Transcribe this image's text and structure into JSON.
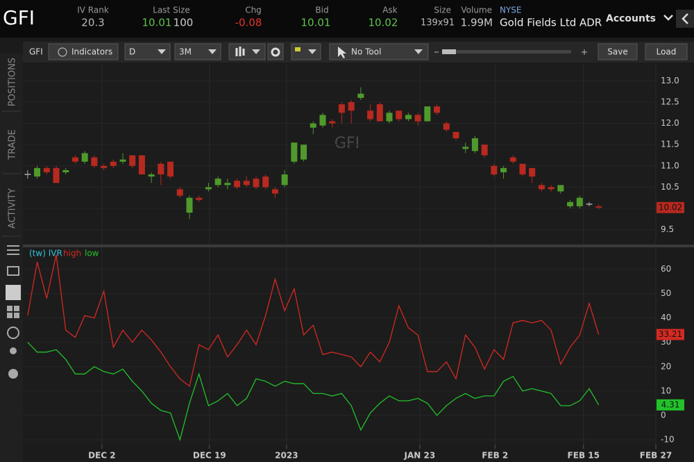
{
  "header": {
    "symbol": "GFI",
    "iv_rank": {
      "label": "IV Rank",
      "value": "20.3"
    },
    "last_size": {
      "label": "Last Size",
      "price": "10.01",
      "size": "100"
    },
    "chg": {
      "label": "Chg",
      "value": "-0.08"
    },
    "bid": {
      "label": "Bid",
      "value": "10.01"
    },
    "ask": {
      "label": "Ask",
      "value": "10.02"
    },
    "size": {
      "label": "Size",
      "value": "139x91"
    },
    "volume": {
      "label": "Volume",
      "value": "1.99M"
    },
    "exchange": "NYSE",
    "name": "Gold Fields Ltd ADR",
    "accounts": "Accounts"
  },
  "toolbar": {
    "indicators": "Indicators",
    "aggregation": "D",
    "range": "3M",
    "tool": "No Tool",
    "save": "Save",
    "load": "Load"
  },
  "sidebar": [
    "POSITIONS",
    "TRADE",
    "ACTIVITY"
  ],
  "chart_data": [
    {
      "type": "candlestick",
      "open": [
        10.8,
        10.75,
        10.95,
        10.95,
        10.85,
        11.2,
        11.1,
        11.2,
        11.0,
        11.1,
        11.1,
        11.25,
        11.25,
        10.75,
        11.05,
        11.1,
        10.45,
        9.9,
        10.25,
        10.45,
        10.55,
        10.55,
        10.65,
        10.65,
        10.7,
        10.75,
        10.45,
        10.55,
        11.1,
        11.15,
        11.9,
        11.95,
        12.05,
        12.45,
        12.5,
        12.6,
        12.3,
        12.45,
        12.05,
        12.3,
        12.1,
        12.2,
        12.05,
        12.4,
        12.0,
        11.8,
        11.4,
        11.35,
        11.5,
        11.0,
        10.85,
        11.2,
        11.05,
        10.95,
        10.55,
        10.5,
        10.4,
        10.05,
        10.05,
        10.1,
        10.05
      ],
      "high": [
        10.9,
        11.0,
        11.0,
        11.0,
        10.95,
        11.25,
        11.35,
        11.25,
        11.05,
        11.15,
        11.3,
        11.25,
        11.25,
        10.85,
        11.1,
        11.1,
        10.5,
        10.3,
        10.3,
        10.6,
        10.75,
        10.7,
        10.7,
        10.75,
        10.75,
        10.8,
        10.5,
        10.9,
        11.55,
        11.5,
        12.05,
        12.25,
        12.1,
        12.5,
        12.55,
        12.85,
        12.45,
        12.5,
        12.3,
        12.3,
        12.25,
        12.25,
        12.4,
        12.45,
        12.05,
        11.8,
        11.55,
        11.7,
        11.5,
        11.05,
        11.0,
        11.25,
        11.05,
        10.95,
        10.6,
        10.55,
        10.55,
        10.2,
        10.3,
        10.15,
        10.1
      ],
      "low": [
        10.7,
        10.7,
        10.8,
        10.6,
        10.8,
        11.05,
        11.05,
        10.95,
        10.9,
        10.95,
        11.05,
        10.95,
        10.8,
        10.6,
        10.55,
        10.7,
        10.25,
        9.75,
        10.15,
        10.4,
        10.5,
        10.45,
        10.45,
        10.5,
        10.45,
        10.45,
        10.25,
        10.5,
        11.05,
        11.1,
        11.75,
        11.9,
        11.9,
        12.0,
        12.0,
        12.55,
        12.05,
        12.05,
        12.0,
        12.05,
        12.05,
        11.95,
        12.05,
        12.2,
        11.8,
        11.6,
        11.3,
        11.3,
        11.2,
        10.75,
        10.7,
        11.05,
        10.75,
        10.6,
        10.4,
        10.4,
        10.35,
        10.0,
        10.0,
        10.05,
        9.98
      ],
      "close": [
        10.8,
        10.95,
        10.85,
        10.6,
        10.9,
        11.1,
        11.3,
        11.0,
        10.95,
        11.0,
        11.15,
        11.0,
        10.8,
        10.8,
        10.8,
        10.75,
        10.3,
        10.25,
        10.2,
        10.5,
        10.7,
        10.6,
        10.5,
        10.55,
        10.5,
        10.5,
        10.35,
        10.8,
        11.55,
        11.5,
        12.0,
        12.2,
        12.0,
        12.25,
        12.3,
        12.7,
        12.1,
        12.05,
        12.25,
        12.1,
        12.2,
        12.05,
        12.4,
        12.25,
        11.85,
        11.65,
        11.45,
        11.65,
        11.25,
        10.8,
        10.95,
        11.1,
        10.8,
        10.75,
        10.45,
        10.45,
        10.55,
        10.15,
        10.25,
        10.1,
        10.02
      ],
      "colors": {
        "up": "#4f9a2c",
        "down": "#b8291f",
        "flat": "#aaaaaa"
      },
      "xlim": [
        -0.5,
        66
      ],
      "ylim": [
        9.15,
        13.4
      ],
      "yticks": [
        9.5,
        {
          "value": 10,
          "label": "10.0"
        },
        10.5,
        {
          "value": 11,
          "label": "11.0"
        },
        11.5,
        {
          "value": 12,
          "label": "12.0"
        },
        12.5,
        {
          "value": 13,
          "label": "13.0"
        }
      ],
      "grid": true
    },
    {
      "type": "line",
      "title": "(tw) IVR",
      "title_color": "#33c3dc",
      "series": [
        {
          "name": "high",
          "color": "#d42a22",
          "values": [
            41,
            63,
            48,
            66,
            35,
            32,
            41,
            40,
            51,
            28,
            35,
            30,
            35,
            31,
            26,
            20,
            15,
            12,
            29,
            27,
            33,
            24,
            29,
            35,
            29,
            41,
            56,
            43,
            52,
            33,
            37,
            25,
            26,
            25,
            24,
            20,
            26,
            22,
            30,
            45,
            36,
            33,
            18,
            18,
            22,
            15,
            33,
            28,
            19,
            27,
            23,
            38,
            39,
            38,
            39,
            35,
            21,
            28,
            33,
            46,
            33.21
          ]
        },
        {
          "name": "low",
          "color": "#22c22a",
          "values": [
            30,
            26,
            26,
            27,
            23,
            17,
            17,
            20,
            18,
            17,
            19,
            14,
            10,
            5,
            2,
            1,
            -10,
            5,
            17,
            4,
            6,
            9,
            4,
            7,
            15,
            14,
            12,
            14,
            13,
            13,
            9,
            9,
            8,
            9,
            4,
            -6,
            1,
            5,
            8,
            6,
            6,
            7,
            5,
            0,
            4,
            7,
            9,
            7,
            8,
            8,
            14,
            16,
            10,
            11,
            10,
            9,
            4,
            4,
            6,
            11,
            4.31
          ]
        }
      ],
      "xlim": [
        -0.5,
        66
      ],
      "ylim": [
        -12,
        69
      ],
      "yticks": [
        -10,
        0,
        10,
        20,
        30,
        40,
        50,
        60
      ],
      "xticks": [
        {
          "value": 7.8,
          "label": "DEC 2"
        },
        {
          "value": 19.1,
          "label": "DEC 19"
        },
        {
          "value": 27.2,
          "label": "2023"
        },
        {
          "value": 41.2,
          "label": "JAN 23"
        },
        {
          "value": 49.1,
          "label": "FEB 2"
        },
        {
          "value": 58.4,
          "label": "FEB 15"
        },
        {
          "value": 66,
          "label": "FEB 27"
        }
      ],
      "grid": true
    }
  ]
}
